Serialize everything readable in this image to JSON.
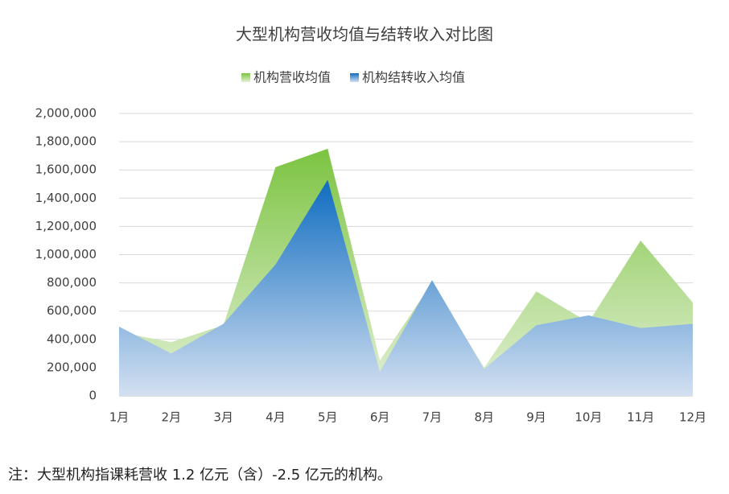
{
  "chart_data": {
    "type": "area",
    "title": "大型机构营收均值与结转收入对比图",
    "categories": [
      "1月",
      "2月",
      "3月",
      "4月",
      "5月",
      "6月",
      "7月",
      "8月",
      "9月",
      "10月",
      "11月",
      "12月"
    ],
    "series": [
      {
        "name": "机构营收均值",
        "color": "#7cc441",
        "values": [
          450000,
          380000,
          500000,
          1620000,
          1750000,
          250000,
          800000,
          200000,
          740000,
          520000,
          1100000,
          660000
        ]
      },
      {
        "name": "机构结转收入均值",
        "color": "#0f6cc0",
        "values": [
          490000,
          300000,
          510000,
          930000,
          1530000,
          170000,
          820000,
          190000,
          500000,
          570000,
          480000,
          510000
        ]
      }
    ],
    "ylim": [
      0,
      2000000
    ],
    "yticks": [
      0,
      {
        "value": 200000,
        "label": "200,000"
      },
      {
        "value": 400000,
        "label": "400,000"
      },
      {
        "value": 600000,
        "label": "600,000"
      },
      {
        "value": 800000,
        "label": "800,000"
      },
      {
        "value": 1000000,
        "label": "1,000,000"
      },
      {
        "value": 1200000,
        "label": "1,200,000"
      },
      {
        "value": 1400000,
        "label": "1,400,000"
      },
      {
        "value": 1600000,
        "label": "1,600,000"
      },
      {
        "value": 1800000,
        "label": "1,800,000"
      },
      {
        "value": 2000000,
        "label": "2,000,000"
      }
    ],
    "grid": true,
    "legend": "top"
  },
  "note": "注：大型机构指课耗营收 1.2 亿元（含）-2.5 亿元的机构。"
}
